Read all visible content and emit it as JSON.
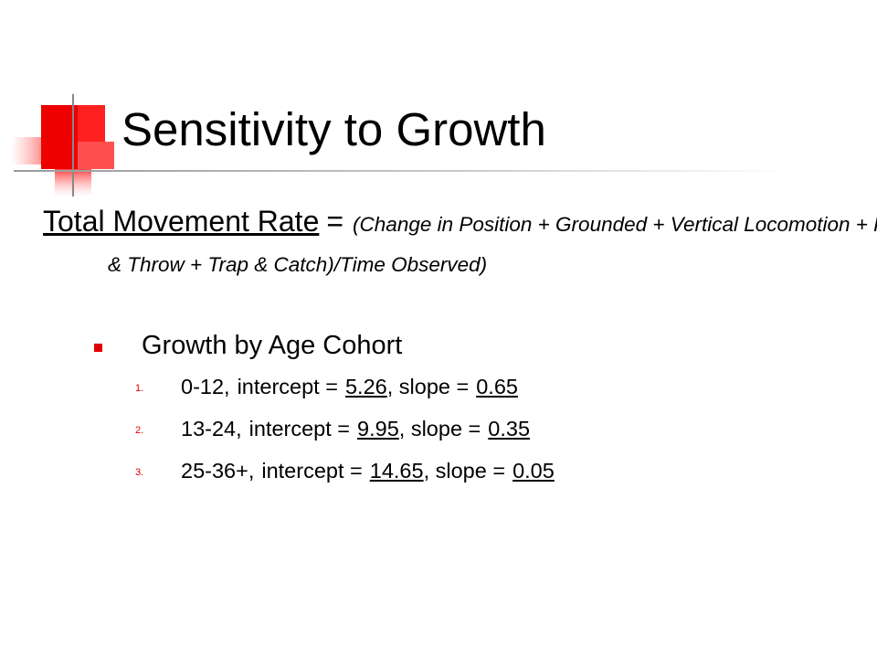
{
  "title": "Sensitivity to Growth",
  "formula": {
    "term": "Total Movement Rate",
    "equals": "=",
    "definition": "(Change in Position + Grounded + Vertical Locomotion + Roll & Throw + Trap & Catch)/Time Observed)"
  },
  "bullet": "Growth by Age Cohort",
  "items": [
    {
      "marker": "1.",
      "cohort": "0-12,",
      "intercept_label": "intercept =",
      "intercept": 5.26,
      "slope_label": ", slope =",
      "slope": 0.65
    },
    {
      "marker": "2.",
      "cohort": "13-24,",
      "intercept_label": "intercept =",
      "intercept": 9.95,
      "slope_label": ", slope =",
      "slope": 0.35
    },
    {
      "marker": "3.",
      "cohort": "25-36+,",
      "intercept_label": "intercept =",
      "intercept": 14.65,
      "slope_label": ", slope =",
      "slope": 0.05
    }
  ]
}
